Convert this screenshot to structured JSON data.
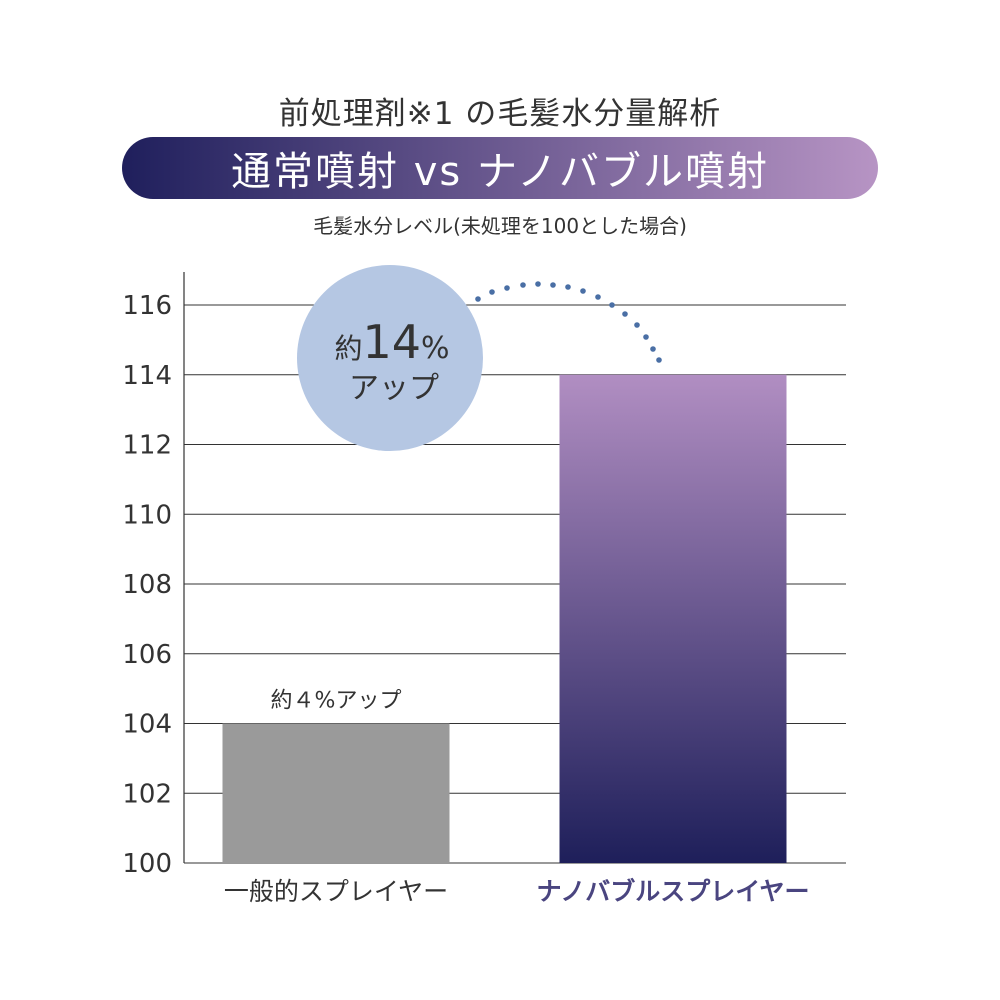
{
  "header": {
    "title": "前処理剤※1 の毛髪水分量解析",
    "banner": "通常噴射 vs ナノバブル噴射",
    "subtitle": "毛髪水分レベル(未処理を100とした場合)"
  },
  "callout": {
    "text": "約14%アップ",
    "line1_prefix": "約",
    "line1_number": "14",
    "line1_suffix": "%",
    "line2": "アップ"
  },
  "colors": {
    "banner_start": "#1f1f5c",
    "banner_end": "#b794c4",
    "bar_normal": "#9a9a9a",
    "bar_nano_top": "#b18ec2",
    "bar_nano_bottom": "#1e1f5a",
    "callout_circle": "#b5c7e3",
    "dots": "#4a6fa5",
    "grid": "#333333",
    "accent_label": "#4a4580"
  },
  "chart_data": {
    "type": "bar",
    "title": "前処理剤※1 の毛髪水分量解析",
    "subtitle": "毛髪水分レベル(未処理を100とした場合)",
    "categories": [
      "一般的スプレイヤー",
      "ナノバブルスプレイヤー"
    ],
    "values": [
      104,
      114
    ],
    "data_labels": [
      "約４%アップ",
      "約14%アップ"
    ],
    "ylim": [
      100,
      116
    ],
    "yticks": [
      100,
      102,
      104,
      106,
      108,
      110,
      112,
      114,
      116
    ],
    "xlabel": "",
    "ylabel": "",
    "grid": true,
    "legend": "none"
  }
}
